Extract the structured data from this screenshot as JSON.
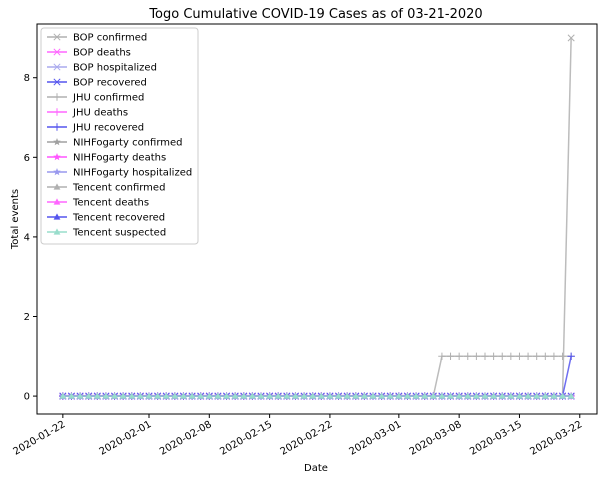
{
  "chart_data": {
    "type": "line",
    "title": "Togo Cumulative COVID-19 Cases as of 03-21-2020",
    "xlabel": "Date",
    "ylabel": "Total events",
    "x_start": "2020-01-22",
    "x_end": "2020-03-21",
    "xlim": [
      "2020-01-19",
      "2020-03-24"
    ],
    "ylim": [
      -0.45,
      9.35
    ],
    "yticks": [
      0,
      2,
      4,
      6,
      8
    ],
    "xticks": [
      "2020-01-22",
      "2020-02-01",
      "2020-02-08",
      "2020-02-15",
      "2020-02-22",
      "2020-03-01",
      "2020-03-08",
      "2020-03-15",
      "2020-03-22"
    ],
    "grid": false,
    "legend_position": "top-left",
    "series": [
      {
        "name": "BOP confirmed",
        "color": "#b0b0b0",
        "marker": "x",
        "points": [
          [
            "2020-01-22",
            0
          ],
          [
            "2020-03-20",
            0
          ],
          [
            "2020-03-21",
            9
          ]
        ]
      },
      {
        "name": "BOP deaths",
        "color": "#ff66ff",
        "marker": "x",
        "points": [
          [
            "2020-01-22",
            0
          ],
          [
            "2020-03-21",
            0
          ]
        ]
      },
      {
        "name": "BOP hospitalized",
        "color": "#aaaaee",
        "marker": "x",
        "points": [
          [
            "2020-01-22",
            0
          ],
          [
            "2020-03-21",
            0
          ]
        ]
      },
      {
        "name": "BOP recovered",
        "color": "#5555ee",
        "marker": "x",
        "points": [
          [
            "2020-01-22",
            0
          ],
          [
            "2020-03-21",
            0
          ]
        ]
      },
      {
        "name": "JHU confirmed",
        "color": "#b0b0b0",
        "marker": "+",
        "points": [
          [
            "2020-01-22",
            0
          ],
          [
            "2020-03-05",
            0
          ],
          [
            "2020-03-06",
            1
          ],
          [
            "2020-03-19",
            1
          ],
          [
            "2020-03-20",
            1
          ],
          [
            "2020-03-21",
            1
          ]
        ]
      },
      {
        "name": "JHU deaths",
        "color": "#ff66ff",
        "marker": "+",
        "points": [
          [
            "2020-01-22",
            0
          ],
          [
            "2020-03-21",
            0
          ]
        ]
      },
      {
        "name": "JHU recovered",
        "color": "#5555ee",
        "marker": "+",
        "points": [
          [
            "2020-01-22",
            0
          ],
          [
            "2020-03-20",
            0
          ],
          [
            "2020-03-21",
            1
          ]
        ]
      },
      {
        "name": "NIHFogarty confirmed",
        "color": "#a0a0a0",
        "marker": "star",
        "points": [
          [
            "2020-01-22",
            0
          ],
          [
            "2020-03-21",
            0
          ]
        ]
      },
      {
        "name": "NIHFogarty deaths",
        "color": "#ff55ff",
        "marker": "star",
        "points": [
          [
            "2020-01-22",
            0
          ],
          [
            "2020-03-21",
            0
          ]
        ]
      },
      {
        "name": "NIHFogarty hospitalized",
        "color": "#9999ee",
        "marker": "star",
        "points": [
          [
            "2020-01-22",
            0
          ],
          [
            "2020-03-21",
            0
          ]
        ]
      },
      {
        "name": "Tencent confirmed",
        "color": "#b0b0b0",
        "marker": "triangle",
        "points": [
          [
            "2020-01-22",
            0
          ],
          [
            "2020-03-21",
            0
          ]
        ]
      },
      {
        "name": "Tencent deaths",
        "color": "#ff66ff",
        "marker": "triangle",
        "points": [
          [
            "2020-01-22",
            0
          ],
          [
            "2020-03-21",
            0
          ]
        ]
      },
      {
        "name": "Tencent recovered",
        "color": "#5555ee",
        "marker": "triangle",
        "points": [
          [
            "2020-01-22",
            0
          ],
          [
            "2020-03-21",
            0
          ]
        ]
      },
      {
        "name": "Tencent suspected",
        "color": "#99ddcc",
        "marker": "triangle",
        "points": [
          [
            "2020-01-22",
            0
          ],
          [
            "2020-03-21",
            0
          ]
        ]
      }
    ]
  }
}
